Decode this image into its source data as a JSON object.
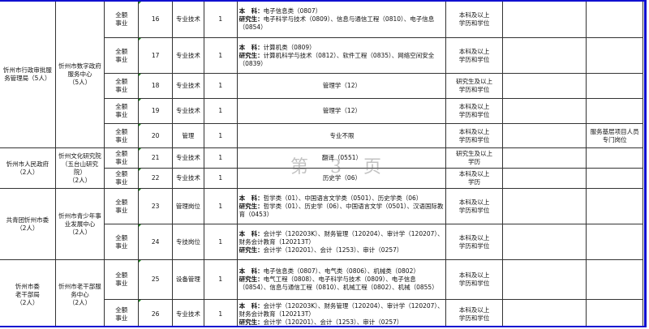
{
  "watermark": "第 3 页",
  "groups": [
    {
      "dept": "忻州市行政审批服务管理局（5人）",
      "unit": "忻州市数字政府服务中心\n（5人）"
    },
    {
      "dept": "忻州市人民政府\n（2人）",
      "unit": "忻州文化研究院\n（五台山研究院）\n（2人）"
    },
    {
      "dept": "共青团忻州市委\n（2人）",
      "unit": "忻州市青少年事业发展中心\n（2人）"
    },
    {
      "dept": "忻州市委\n老干部局\n（2人）",
      "unit": "忻州市老干部服务中心\n（2人）"
    }
  ],
  "rows": [
    {
      "type": "全额\n事业",
      "no": "16",
      "post": "专业技术",
      "count": "1",
      "ug_label": "本　科：",
      "ug": "电子信息类（0807）",
      "pg_label": "研究生：",
      "pg": "电子科学与技术（0809）、信息与通信工程（0810）、电子信息（0854）",
      "edu": "本科及以上\n学历和学位",
      "other": "",
      "note": ""
    },
    {
      "type": "全额\n事业",
      "no": "17",
      "post": "专业技术",
      "count": "1",
      "ug_label": "本　科：",
      "ug": "计算机类（0809）",
      "pg_label": "研究生：",
      "pg": "计算机科学与技术（0812）、软件工程（0835）、网络空间安全（0839）",
      "edu": "本科及以上\n学历和学位",
      "other": "",
      "note": ""
    },
    {
      "type": "全额\n事业",
      "no": "18",
      "post": "专业技术",
      "count": "1",
      "major": "管理学（12）",
      "edu": "研究生及以上\n学历和学位",
      "other": "",
      "note": ""
    },
    {
      "type": "全额\n事业",
      "no": "19",
      "post": "专业技术",
      "count": "1",
      "major": "管理学（12）",
      "edu": "本科及以上\n学历和学位",
      "other": "",
      "note": ""
    },
    {
      "type": "全额\n事业",
      "no": "20",
      "post": "管理",
      "count": "1",
      "major": "专业不限",
      "edu": "本科及以上\n学历和学位",
      "other": "",
      "note": "服务基层项目人员专门岗位"
    },
    {
      "type": "全额\n事业",
      "no": "21",
      "post": "专业技术",
      "count": "1",
      "major": "翻译（0551）",
      "edu": "研究生及以上\n学历",
      "other": "",
      "note": ""
    },
    {
      "type": "全额\n事业",
      "no": "22",
      "post": "专业技术",
      "count": "1",
      "major": "历史学（06）",
      "edu": "本科及以上\n学历",
      "other": "",
      "note": ""
    },
    {
      "type": "全额\n事业",
      "no": "23",
      "post": "管理岗位",
      "count": "1",
      "ug_label": "本　科：",
      "ug": "哲学类（01）、中国语言文学类（0501）、历史学类（06）",
      "pg_label": "研究生：",
      "pg": "哲学类（01）、历史学（06）、中国语言文学（0501）、汉语国际教育（0453）",
      "edu": "本科及以上\n学历和学位",
      "other": "",
      "note": ""
    },
    {
      "type": "全额\n事业",
      "no": "24",
      "post": "专技岗位",
      "count": "1",
      "ug_label": "本　科：",
      "ug": "会计学（120203K）、财务管理（120204）、审计学（120207）、财务会计教育（120213T）",
      "pg_label": "研究生：",
      "pg": "会计学（120201）、会计（1253）、审计（0257）",
      "edu": "本科及以上\n学历和学位",
      "other": "",
      "note": ""
    },
    {
      "type": "全额\n事业",
      "no": "25",
      "post": "设备管理",
      "count": "1",
      "ug_label": "本　科：",
      "ug": "电子信息类（0807）、电气类（0806）、机械类（0802）",
      "pg_label": "研究生：",
      "pg": "电气工程（0808）、电子科学与技术（0809）、电子信息（0854）、信息与通信工程（0810）、机械工程（0802）、机械（0855）",
      "edu": "本科及以上\n学历和学位",
      "other": "",
      "note": ""
    },
    {
      "type": "全额\n事业",
      "no": "26",
      "post": "专业技术",
      "count": "1",
      "ug_label": "本　科：",
      "ug": "会计学（120203K）、财务管理（120204）、审计学（120207）、财务会计教育（120213T）",
      "pg_label": "研究生：",
      "pg": "会计学（120201）、会计（1253）、审计（0257）",
      "edu": "本科及以上\n学历和学位",
      "other": "",
      "note": ""
    }
  ]
}
